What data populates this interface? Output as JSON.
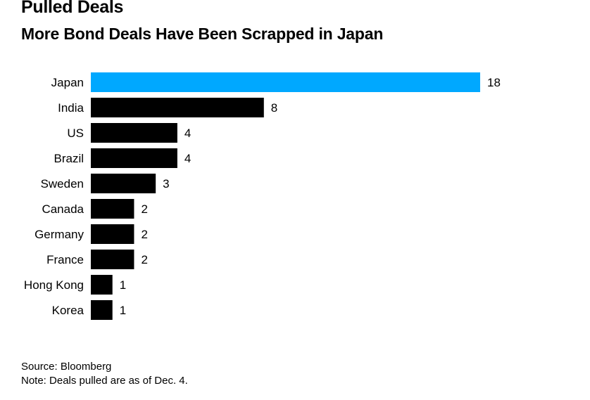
{
  "header": {
    "title": "Pulled Deals",
    "subtitle": "More Bond Deals Have Been Scrapped in Japan"
  },
  "footer": {
    "source": "Source: Bloomberg",
    "note": "Note: Deals pulled are as of Dec. 4."
  },
  "chart_data": {
    "type": "bar",
    "orientation": "horizontal",
    "categories": [
      "Japan",
      "India",
      "US",
      "Brazil",
      "Sweden",
      "Canada",
      "Germany",
      "France",
      "Hong Kong",
      "Korea"
    ],
    "values": [
      18,
      8,
      4,
      4,
      3,
      2,
      2,
      2,
      1,
      1
    ],
    "data_labels": [
      "18",
      "8",
      "4",
      "4",
      "3",
      "2",
      "2",
      "2",
      "1",
      "1"
    ],
    "highlight_category": "Japan",
    "colors": {
      "highlight": "#00a8ff",
      "default": "#000000"
    },
    "xlim": [
      0,
      18
    ],
    "grid": false,
    "legend": "none"
  }
}
